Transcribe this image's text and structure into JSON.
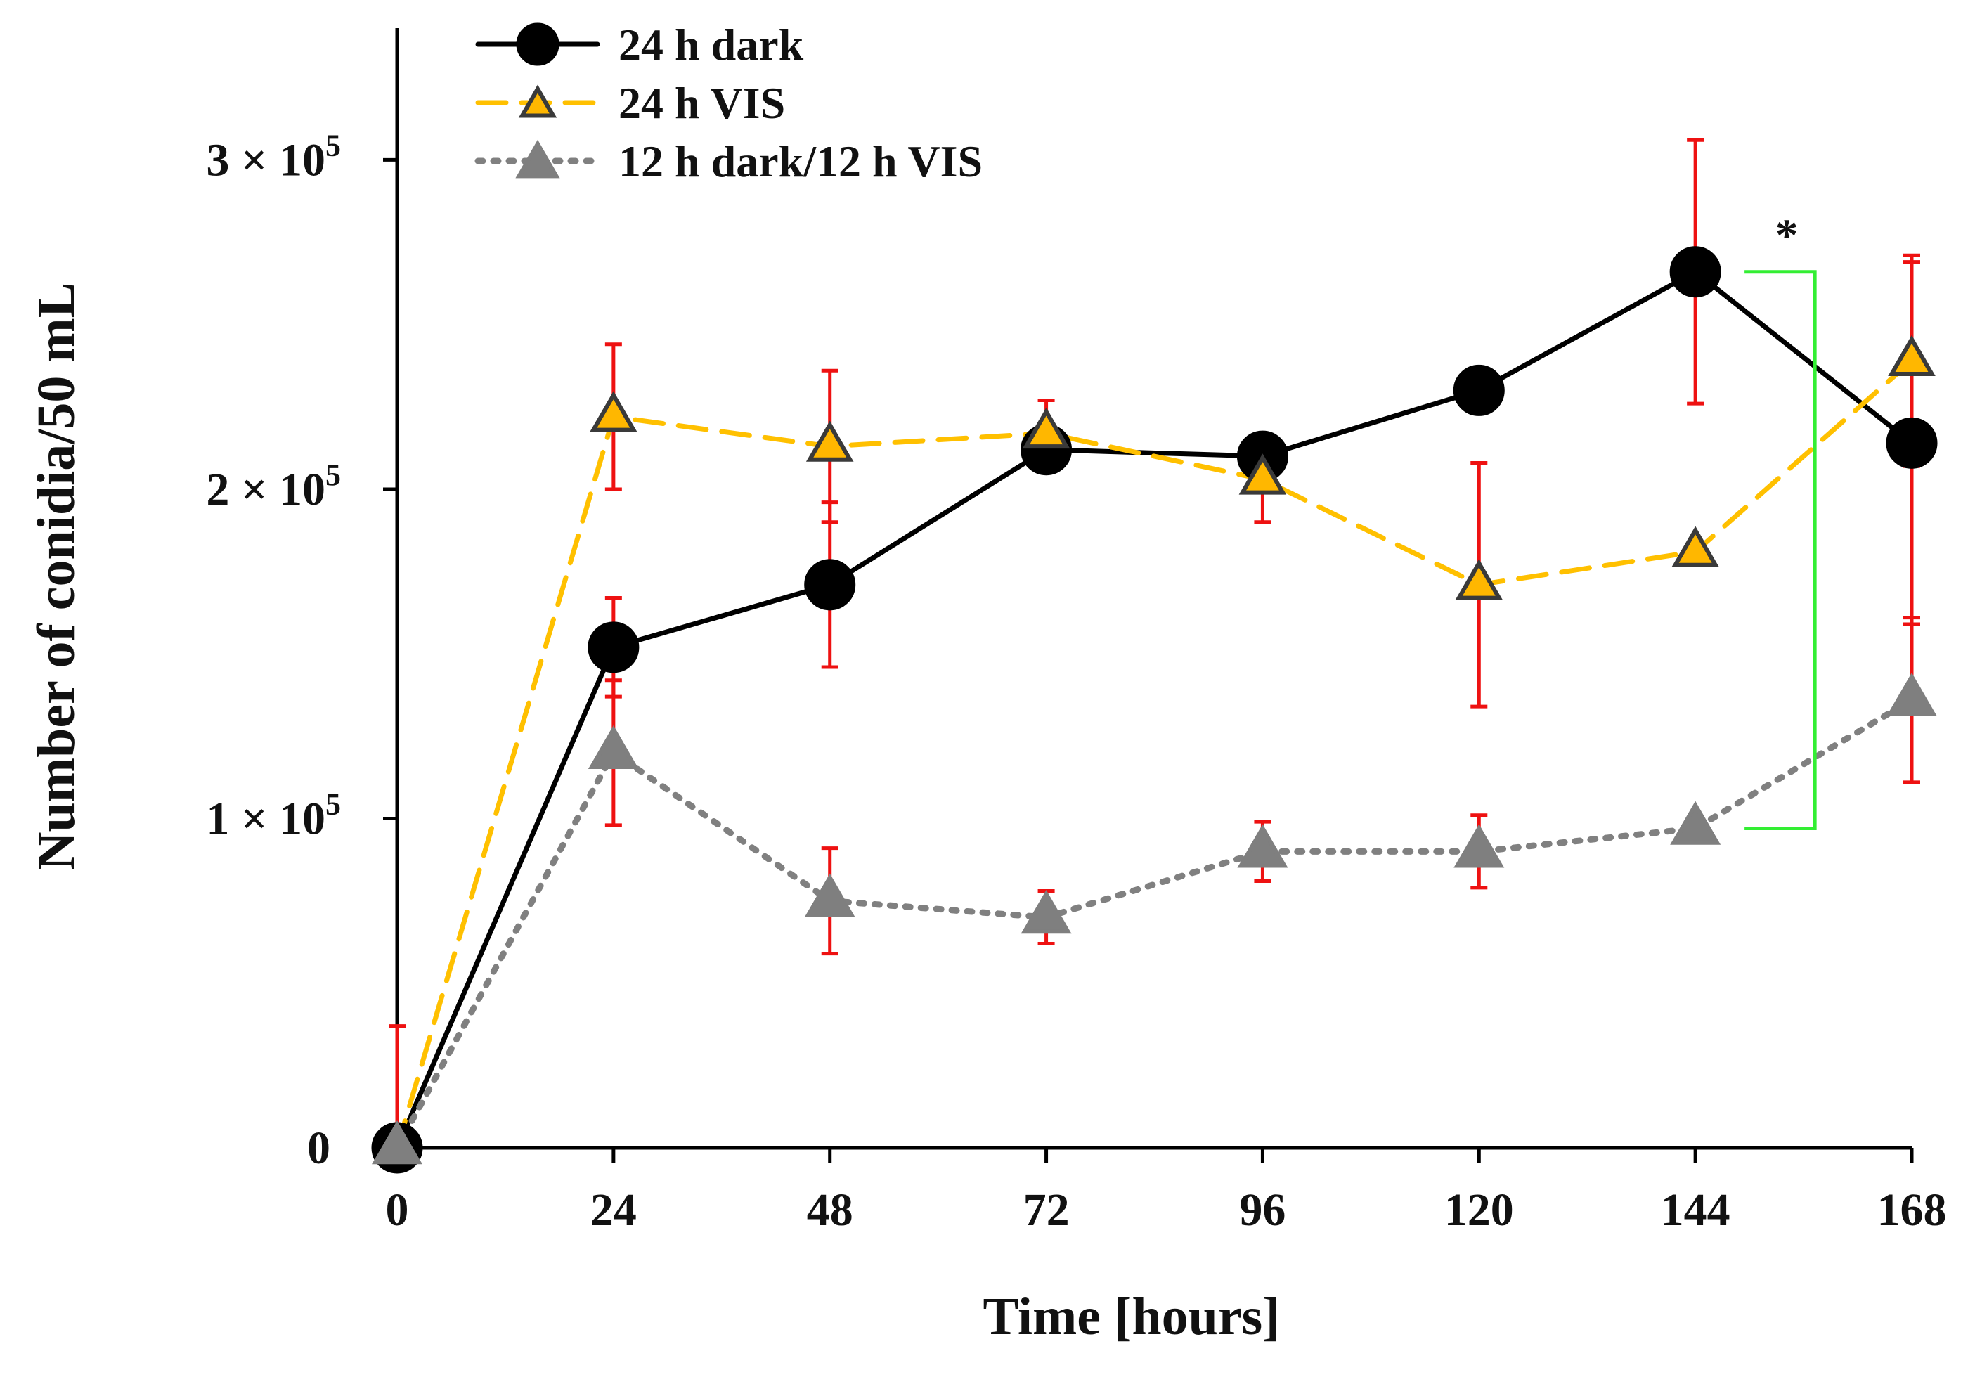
{
  "chart_data": {
    "type": "line",
    "title": "",
    "xlabel": "Time [hours]",
    "ylabel": "Number of conidia/50 mL",
    "x": [
      0,
      24,
      48,
      72,
      96,
      120,
      144,
      168
    ],
    "xlim": [
      0,
      168
    ],
    "ylim": [
      0,
      340000
    ],
    "x_ticks": [
      {
        "value": 0,
        "label": "0"
      },
      {
        "value": 24,
        "label": "24"
      },
      {
        "value": 48,
        "label": "48"
      },
      {
        "value": 72,
        "label": "72"
      },
      {
        "value": 96,
        "label": "96"
      },
      {
        "value": 120,
        "label": "120"
      },
      {
        "value": 144,
        "label": "144"
      },
      {
        "value": 168,
        "label": "168"
      }
    ],
    "y_ticks": [
      {
        "value": 0,
        "label": "0",
        "mantissa": "0",
        "base": "",
        "exponent": ""
      },
      {
        "value": 100000,
        "label": "1 × 10^5",
        "mantissa": "1",
        "base": " × 10",
        "exponent": "5"
      },
      {
        "value": 200000,
        "label": "2 × 10^5",
        "mantissa": "2",
        "base": " × 10",
        "exponent": "5"
      },
      {
        "value": 300000,
        "label": "3 × 10^5",
        "mantissa": "3",
        "base": " × 10",
        "exponent": "5"
      }
    ],
    "grid": false,
    "legend_position": "top-left",
    "series": [
      {
        "name": "24 h dark",
        "marker": "circle",
        "line_style": "solid",
        "color": "#000000",
        "marker_fill": "#000000",
        "values": [
          0,
          152000,
          171000,
          212000,
          210000,
          230000,
          266000,
          214000
        ],
        "errors": [
          0,
          15000,
          25000,
          0,
          0,
          0,
          40000,
          55000
        ]
      },
      {
        "name": "24 h VIS",
        "marker": "triangle",
        "line_style": "dashed",
        "color": "#FFC000",
        "marker_fill": "#FFB700",
        "values": [
          0,
          222000,
          213000,
          217000,
          203000,
          171000,
          181000,
          239000
        ],
        "errors": [
          37000,
          22000,
          23000,
          10000,
          13000,
          37000,
          0,
          32000
        ]
      },
      {
        "name": "12 h dark/12 h VIS",
        "marker": "triangle",
        "line_style": "dotted",
        "color": "#808080",
        "marker_fill": "#7F7F7F",
        "values": [
          0,
          120000,
          75000,
          70000,
          90000,
          90000,
          97000,
          136000
        ],
        "errors": [
          0,
          22000,
          16000,
          8000,
          9000,
          11000,
          0,
          25000
        ]
      }
    ],
    "annotations": [
      {
        "text": "*",
        "type": "significance-bracket",
        "x": 144,
        "series_from": "24 h dark",
        "series_to": "12 h dark/12 h VIS",
        "color": "#33EE33"
      }
    ],
    "error_bar_color": "#EE1111"
  }
}
